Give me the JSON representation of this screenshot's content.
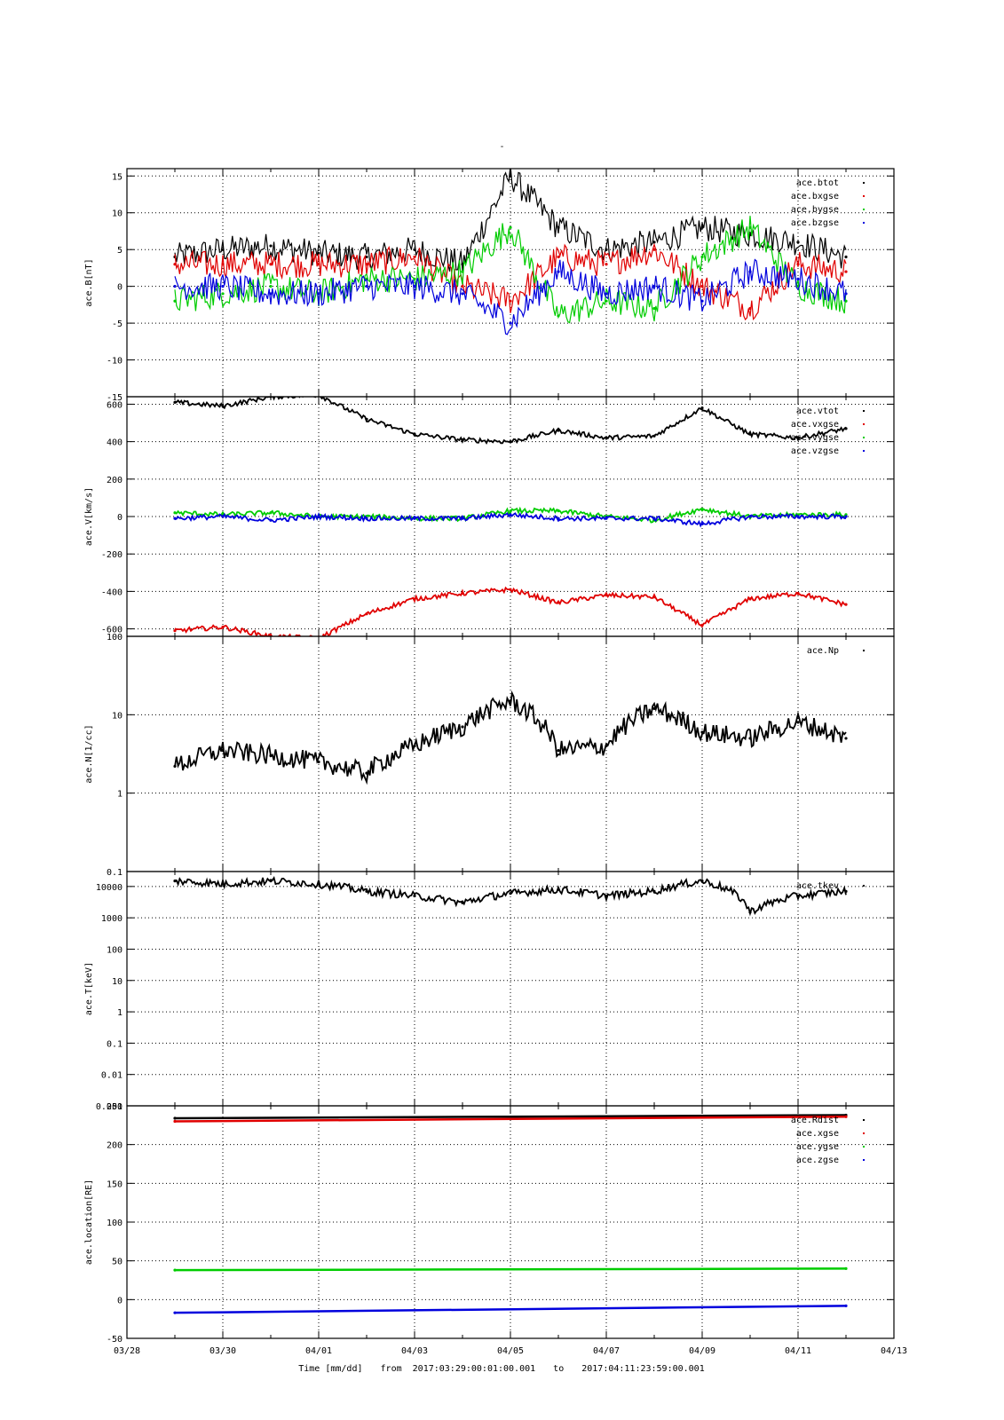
{
  "title": "-",
  "footer": {
    "xlabel": "Time [mm/dd]",
    "from_label": "from",
    "from_time": "2017:03:29:00:01:00.001",
    "to_label": "to",
    "to_time": "2017:04:11:23:59:00.001"
  },
  "x_axis": {
    "start": "2017-03-28",
    "end": "2017-04-13",
    "ticks": [
      "03/28",
      "03/30",
      "04/01",
      "04/03",
      "04/05",
      "04/07",
      "04/09",
      "04/11",
      "04/13"
    ]
  },
  "chart_data": [
    {
      "type": "scatter",
      "ylabel": "ace.B[nT]",
      "ylim": [
        -15,
        16
      ],
      "yscale": "linear",
      "yticks": [
        "-15",
        "-10",
        "-5",
        "0",
        "5",
        "10",
        "15"
      ],
      "grid": true,
      "legend_position": "top-right",
      "series": [
        {
          "name": "ace.btot",
          "color": "#000000",
          "x": [
            "03/29",
            "03/30",
            "03/31",
            "04/01",
            "04/02",
            "04/03",
            "04/04",
            "04/05",
            "04/06",
            "04/07",
            "04/08",
            "04/09",
            "04/10",
            "04/11",
            "04/12"
          ],
          "values": [
            4,
            5,
            5.5,
            4.5,
            4,
            5,
            3,
            15,
            8,
            5,
            6,
            8,
            7,
            6,
            4
          ]
        },
        {
          "name": "ace.bxgse",
          "color": "#e00000",
          "x": [
            "03/29",
            "03/30",
            "03/31",
            "04/01",
            "04/02",
            "04/03",
            "04/04",
            "04/05",
            "04/06",
            "04/07",
            "04/08",
            "04/09",
            "04/10",
            "04/11",
            "04/12"
          ],
          "values": [
            3,
            3,
            3,
            3,
            3,
            4,
            0,
            -2,
            4,
            3,
            5,
            0,
            -3,
            3,
            2
          ]
        },
        {
          "name": "ace.bygse",
          "color": "#00cc00",
          "x": [
            "03/29",
            "03/30",
            "03/31",
            "04/01",
            "04/02",
            "04/03",
            "04/04",
            "04/05",
            "04/06",
            "04/07",
            "04/08",
            "04/09",
            "04/10",
            "04/11",
            "04/12"
          ],
          "values": [
            -2,
            -1,
            0,
            -1,
            1,
            1,
            2,
            8,
            -4,
            -2,
            -3,
            4,
            8,
            0,
            -2
          ]
        },
        {
          "name": "ace.bzgse",
          "color": "#0000dd",
          "x": [
            "03/29",
            "03/30",
            "03/31",
            "04/01",
            "04/02",
            "04/03",
            "04/04",
            "04/05",
            "04/06",
            "04/07",
            "04/08",
            "04/09",
            "04/10",
            "04/11",
            "04/12"
          ],
          "values": [
            0,
            0,
            -1,
            -1,
            0,
            0,
            -1,
            -5,
            2,
            -1,
            0,
            -2,
            2,
            1,
            -1
          ]
        }
      ]
    },
    {
      "type": "scatter",
      "ylabel": "ace.V[km/s]",
      "ylim": [
        -640,
        640
      ],
      "yscale": "linear",
      "yticks": [
        "-600",
        "-400",
        "-200",
        "0",
        "200",
        "400",
        "600"
      ],
      "grid": true,
      "legend_position": "top-right",
      "series": [
        {
          "name": "ace.vtot",
          "color": "#000000",
          "x": [
            "03/29",
            "03/30",
            "03/31",
            "04/01",
            "04/02",
            "04/03",
            "04/04",
            "04/05",
            "04/06",
            "04/07",
            "04/08",
            "04/09",
            "04/10",
            "04/11",
            "04/12"
          ],
          "values": [
            610,
            590,
            640,
            650,
            520,
            440,
            410,
            400,
            460,
            420,
            430,
            580,
            440,
            420,
            470
          ]
        },
        {
          "name": "ace.vxgse",
          "color": "#e00000",
          "x": [
            "03/29",
            "03/30",
            "03/31",
            "04/01",
            "04/02",
            "04/03",
            "04/04",
            "04/05",
            "04/06",
            "04/07",
            "04/08",
            "04/09",
            "04/10",
            "04/11",
            "04/12"
          ],
          "values": [
            -610,
            -590,
            -640,
            -650,
            -520,
            -440,
            -410,
            -390,
            -460,
            -420,
            -430,
            -580,
            -440,
            -410,
            -470
          ]
        },
        {
          "name": "ace.vygse",
          "color": "#00cc00",
          "x": [
            "03/29",
            "03/30",
            "03/31",
            "04/01",
            "04/02",
            "04/03",
            "04/04",
            "04/05",
            "04/06",
            "04/07",
            "04/08",
            "04/09",
            "04/10",
            "04/11",
            "04/12"
          ],
          "values": [
            20,
            10,
            20,
            0,
            0,
            -10,
            -10,
            30,
            30,
            0,
            -20,
            40,
            0,
            10,
            10
          ]
        },
        {
          "name": "ace.vzgse",
          "color": "#0000dd",
          "x": [
            "03/29",
            "03/30",
            "03/31",
            "04/01",
            "04/02",
            "04/03",
            "04/04",
            "04/05",
            "04/06",
            "04/07",
            "04/08",
            "04/09",
            "04/10",
            "04/11",
            "04/12"
          ],
          "values": [
            -10,
            0,
            -20,
            0,
            -10,
            -10,
            -10,
            10,
            -10,
            -10,
            -10,
            -40,
            0,
            0,
            0
          ]
        }
      ]
    },
    {
      "type": "scatter",
      "ylabel": "ace.N[1/cc]",
      "ylim": [
        0.1,
        100
      ],
      "yscale": "log",
      "yticks": [
        "0.1",
        "1",
        "10",
        "100"
      ],
      "grid": true,
      "legend_position": "top-right",
      "series": [
        {
          "name": "ace.Np",
          "color": "#000000",
          "x": [
            "03/29",
            "03/30",
            "03/31",
            "04/01",
            "04/02",
            "04/03",
            "04/04",
            "04/05",
            "04/06",
            "04/07",
            "04/08",
            "04/09",
            "04/10",
            "04/11",
            "04/12"
          ],
          "values": [
            2.2,
            3.5,
            3,
            2.5,
            1.8,
            4,
            7,
            15,
            3.5,
            4,
            12,
            6,
            5,
            8,
            5
          ]
        }
      ]
    },
    {
      "type": "scatter",
      "ylabel": "ace.T[keV]",
      "ylim": [
        0.001,
        30000
      ],
      "yscale": "log",
      "yticks": [
        "0.001",
        "0.01",
        "0.1",
        "1",
        "10",
        "100",
        "1000",
        "10000"
      ],
      "grid": true,
      "legend_position": "top-right",
      "series": [
        {
          "name": "ace.tkev",
          "color": "#000000",
          "x": [
            "03/29",
            "03/30",
            "03/31",
            "04/01",
            "04/02",
            "04/03",
            "04/04",
            "04/05",
            "04/06",
            "04/07",
            "04/08",
            "04/09",
            "04/10",
            "04/11",
            "04/12"
          ],
          "values": [
            15000,
            12000,
            15000,
            12000,
            7000,
            5000,
            3000,
            6000,
            8000,
            5000,
            7000,
            15000,
            1500,
            5000,
            7000
          ]
        }
      ]
    },
    {
      "type": "line",
      "ylabel": "ace.location[RE]",
      "ylim": [
        -50,
        250
      ],
      "yscale": "linear",
      "yticks": [
        "-50",
        "0",
        "50",
        "100",
        "150",
        "200",
        "250"
      ],
      "grid": true,
      "legend_position": "top-right",
      "series": [
        {
          "name": "ace.Rdist",
          "color": "#000000",
          "x": [
            "03/29",
            "04/12"
          ],
          "values": [
            234,
            238
          ]
        },
        {
          "name": "ace.xgse",
          "color": "#e00000",
          "x": [
            "03/29",
            "04/12"
          ],
          "values": [
            230,
            236
          ]
        },
        {
          "name": "ace.ygse",
          "color": "#00cc00",
          "x": [
            "03/29",
            "04/12"
          ],
          "values": [
            38,
            40
          ]
        },
        {
          "name": "ace.zgse",
          "color": "#0000dd",
          "x": [
            "03/29",
            "04/12"
          ],
          "values": [
            -17,
            -8
          ]
        }
      ]
    }
  ]
}
